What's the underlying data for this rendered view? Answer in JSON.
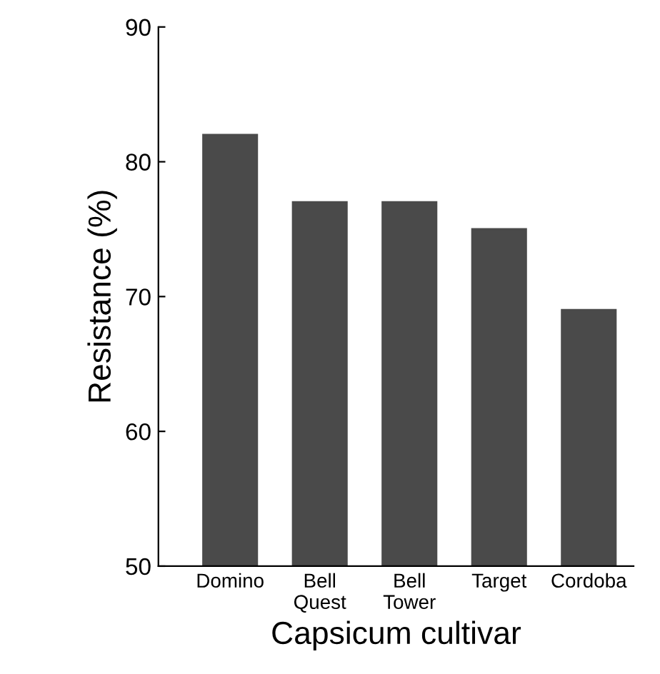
{
  "chart_data": {
    "type": "bar",
    "xlabel": "Capsicum cultivar",
    "ylabel": "Resistance (%)",
    "categories": [
      "Domino",
      "Bell\nQuest",
      "Bell\nTower",
      "Target",
      "Cordoba"
    ],
    "values": [
      82,
      77,
      77,
      75,
      69
    ],
    "color": "#4a4a4a",
    "ylim": [
      50,
      90
    ],
    "yticks": [
      50,
      60,
      70,
      80,
      90
    ],
    "grid": false
  }
}
